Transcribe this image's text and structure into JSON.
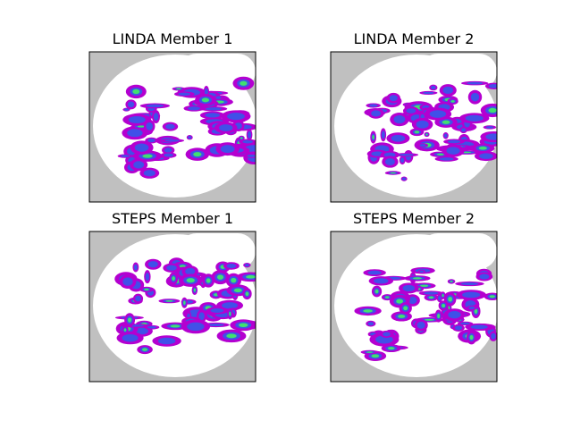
{
  "panels": [
    {
      "title": "LINDA Member 1"
    },
    {
      "title": "LINDA Member 2"
    },
    {
      "title": "STEPS Member 1"
    },
    {
      "title": "STEPS Member 2"
    }
  ]
}
